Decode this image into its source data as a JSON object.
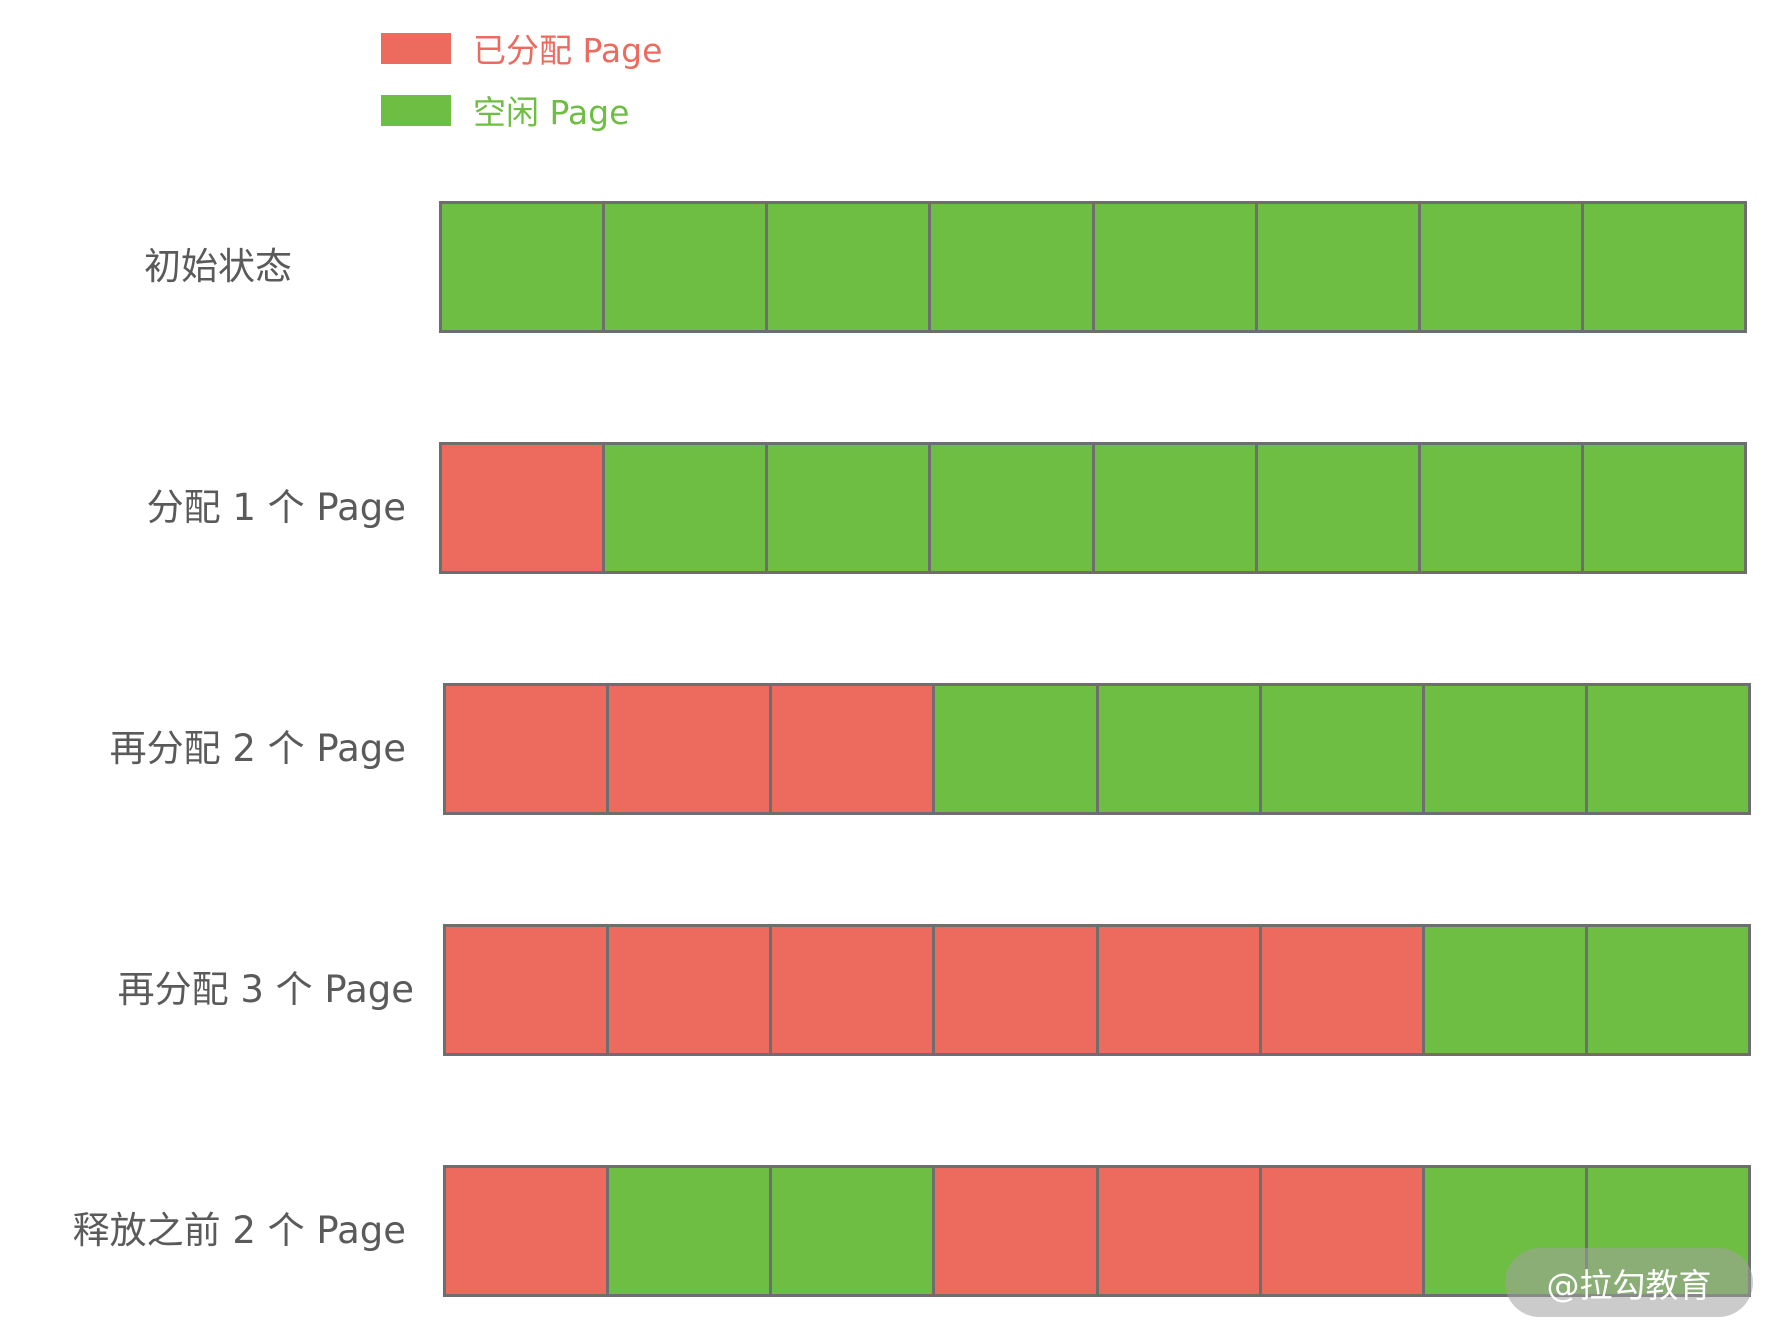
{
  "colors": {
    "allocated": "#ec6b5e",
    "free": "#6fbe44",
    "border": "#6e6e6e"
  },
  "legend": [
    {
      "label": "已分配 Page",
      "state": "allocated"
    },
    {
      "label": "空闲 Page",
      "state": "free"
    }
  ],
  "rows": [
    {
      "label": "初始状态",
      "cells": [
        "free",
        "free",
        "free",
        "free",
        "free",
        "free",
        "free",
        "free"
      ]
    },
    {
      "label": "分配 1 个 Page",
      "cells": [
        "allocated",
        "free",
        "free",
        "free",
        "free",
        "free",
        "free",
        "free"
      ]
    },
    {
      "label": "再分配 2 个 Page",
      "cells": [
        "allocated",
        "allocated",
        "allocated",
        "free",
        "free",
        "free",
        "free",
        "free"
      ]
    },
    {
      "label": "再分配 3 个 Page",
      "cells": [
        "allocated",
        "allocated",
        "allocated",
        "allocated",
        "allocated",
        "allocated",
        "free",
        "free"
      ]
    },
    {
      "label": "释放之前 2 个 Page",
      "cells": [
        "allocated",
        "free",
        "free",
        "allocated",
        "allocated",
        "allocated",
        "free",
        "free"
      ]
    }
  ],
  "watermark": "@拉勾教育"
}
